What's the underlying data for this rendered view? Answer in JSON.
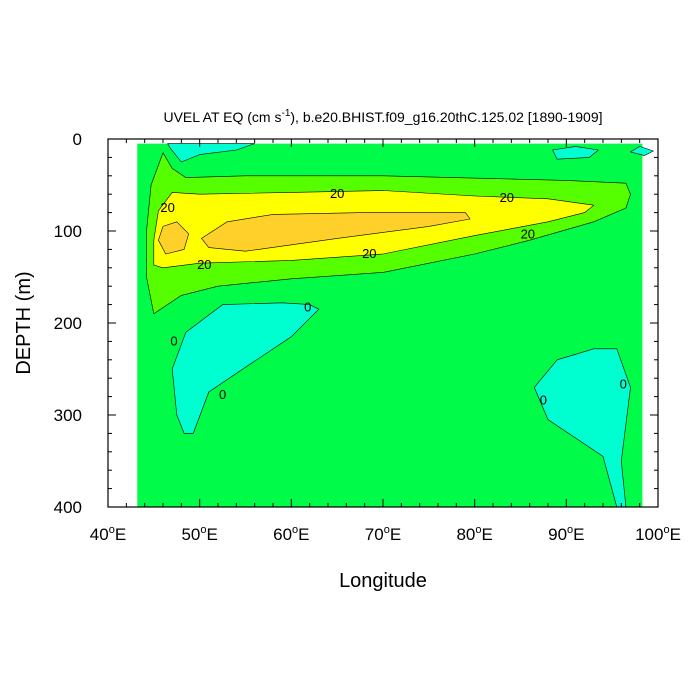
{
  "chart_data": {
    "type": "contour",
    "title": "UVEL AT EQ (cm s",
    "title_sup": "-1",
    "title_rest": "), b.e20.BHIST.f09_g16.20thC.125.02 [1890-1909]",
    "xlabel": "Longitude",
    "ylabel": "DEPTH (m)",
    "xlim": [
      40,
      100
    ],
    "ylim": [
      0,
      400
    ],
    "y_inverted": true,
    "x_ticks": [
      {
        "value": 40,
        "label": "40°E"
      },
      {
        "value": 50,
        "label": "50°E"
      },
      {
        "value": 60,
        "label": "60°E"
      },
      {
        "value": 70,
        "label": "70°E"
      },
      {
        "value": 80,
        "label": "80°E"
      },
      {
        "value": 90,
        "label": "90°E"
      },
      {
        "value": 100,
        "label": "100°E"
      }
    ],
    "y_ticks": [
      {
        "value": 0,
        "label": "0"
      },
      {
        "value": 100,
        "label": "100"
      },
      {
        "value": 200,
        "label": "200"
      },
      {
        "value": 300,
        "label": "300"
      },
      {
        "value": 400,
        "label": "400"
      }
    ],
    "levels": {
      "negative": "< 0",
      "low": "0 to 10",
      "mid": "10 to 20",
      "high": "20 to 30",
      "max": "> 30"
    },
    "colors": {
      "negative": "#00ffd0",
      "low": "#00fb48",
      "mid": "#55ff00",
      "high": "#ffff00",
      "max": "#ffd02a",
      "line": "#000000"
    },
    "regions": [
      {
        "name": "data-domain",
        "level": "low",
        "points": [
          [
            43.2,
            5
          ],
          [
            98.3,
            5
          ],
          [
            98.3,
            105
          ],
          [
            98.3,
            400
          ],
          [
            43.2,
            400
          ]
        ]
      },
      {
        "name": "jet-10",
        "level": "mid",
        "points": [
          [
            45.0,
            190
          ],
          [
            44.2,
            150
          ],
          [
            44.2,
            100
          ],
          [
            44.7,
            50
          ],
          [
            46.0,
            15
          ],
          [
            47.0,
            32
          ],
          [
            48.5,
            42
          ],
          [
            55,
            40
          ],
          [
            70,
            40
          ],
          [
            82,
            43
          ],
          [
            90,
            45
          ],
          [
            96.5,
            48
          ],
          [
            97,
            60
          ],
          [
            96.5,
            75
          ],
          [
            93,
            90
          ],
          [
            86,
            110
          ],
          [
            80,
            125
          ],
          [
            70,
            145
          ],
          [
            60,
            152
          ],
          [
            52,
            160
          ],
          [
            48,
            170
          ]
        ]
      },
      {
        "name": "jet-20",
        "level": "high",
        "points": [
          [
            45,
            137
          ],
          [
            45,
            110
          ],
          [
            45.5,
            78
          ],
          [
            47,
            58
          ],
          [
            50,
            60
          ],
          [
            60,
            58
          ],
          [
            70,
            56
          ],
          [
            80,
            62
          ],
          [
            88,
            65
          ],
          [
            93,
            72
          ],
          [
            92,
            80
          ],
          [
            88,
            90
          ],
          [
            80,
            105
          ],
          [
            70,
            125
          ],
          [
            60,
            132
          ],
          [
            50,
            135
          ],
          [
            46,
            140
          ]
        ]
      },
      {
        "name": "core-a",
        "level": "max",
        "points": [
          [
            46.3,
            125
          ],
          [
            45.5,
            110
          ],
          [
            46,
            95
          ],
          [
            47.5,
            90
          ],
          [
            48.8,
            103
          ],
          [
            48.3,
            120
          ]
        ]
      },
      {
        "name": "core-b",
        "level": "max",
        "points": [
          [
            50.2,
            108
          ],
          [
            53,
            90
          ],
          [
            58,
            82
          ],
          [
            68,
            80
          ],
          [
            79,
            80
          ],
          [
            79.5,
            87
          ],
          [
            75,
            95
          ],
          [
            65,
            108
          ],
          [
            55,
            122
          ],
          [
            51,
            118
          ]
        ]
      },
      {
        "name": "neg-top-left",
        "level": "negative",
        "points": [
          [
            46.5,
            5
          ],
          [
            56,
            5
          ],
          [
            54,
            12
          ],
          [
            50,
            17
          ],
          [
            48,
            25
          ],
          [
            46.8,
            10
          ]
        ]
      },
      {
        "name": "neg-top-right-a",
        "level": "negative",
        "points": [
          [
            88.5,
            12
          ],
          [
            91,
            8
          ],
          [
            93.5,
            12
          ],
          [
            92.5,
            20
          ],
          [
            89,
            22
          ]
        ]
      },
      {
        "name": "neg-top-right-b",
        "level": "negative",
        "points": [
          [
            98,
            8
          ],
          [
            99.5,
            13
          ],
          [
            98.5,
            18
          ],
          [
            97,
            14
          ]
        ]
      },
      {
        "name": "neg-lower-left",
        "level": "negative",
        "points": [
          [
            48.5,
            210
          ],
          [
            52.5,
            180
          ],
          [
            59,
            178
          ],
          [
            62,
            180
          ],
          [
            63,
            185
          ],
          [
            60,
            215
          ],
          [
            55,
            248
          ],
          [
            51,
            275
          ],
          [
            49.3,
            320
          ],
          [
            48.3,
            320
          ],
          [
            47.5,
            300
          ],
          [
            47,
            250
          ]
        ]
      },
      {
        "name": "neg-lower-right",
        "level": "negative",
        "points": [
          [
            86.5,
            270
          ],
          [
            89,
            240
          ],
          [
            93,
            228
          ],
          [
            95.5,
            228
          ],
          [
            97,
            270
          ],
          [
            96,
            350
          ],
          [
            96.5,
            400
          ],
          [
            95.5,
            400
          ],
          [
            94,
            345
          ],
          [
            91,
            325
          ],
          [
            88,
            305
          ]
        ]
      }
    ],
    "contour_labels": [
      {
        "text": "20",
        "x": 46.5,
        "y": 75
      },
      {
        "text": "20",
        "x": 65,
        "y": 60
      },
      {
        "text": "20",
        "x": 83.5,
        "y": 64
      },
      {
        "text": "20",
        "x": 85.8,
        "y": 104
      },
      {
        "text": "20",
        "x": 68.5,
        "y": 125
      },
      {
        "text": "20",
        "x": 50.5,
        "y": 137
      },
      {
        "text": "0",
        "x": 61.8,
        "y": 183
      },
      {
        "text": "0",
        "x": 47.2,
        "y": 220
      },
      {
        "text": "0",
        "x": 52.5,
        "y": 278
      },
      {
        "text": "0",
        "x": 87.5,
        "y": 284
      },
      {
        "text": "0",
        "x": 96.2,
        "y": 267
      }
    ]
  }
}
